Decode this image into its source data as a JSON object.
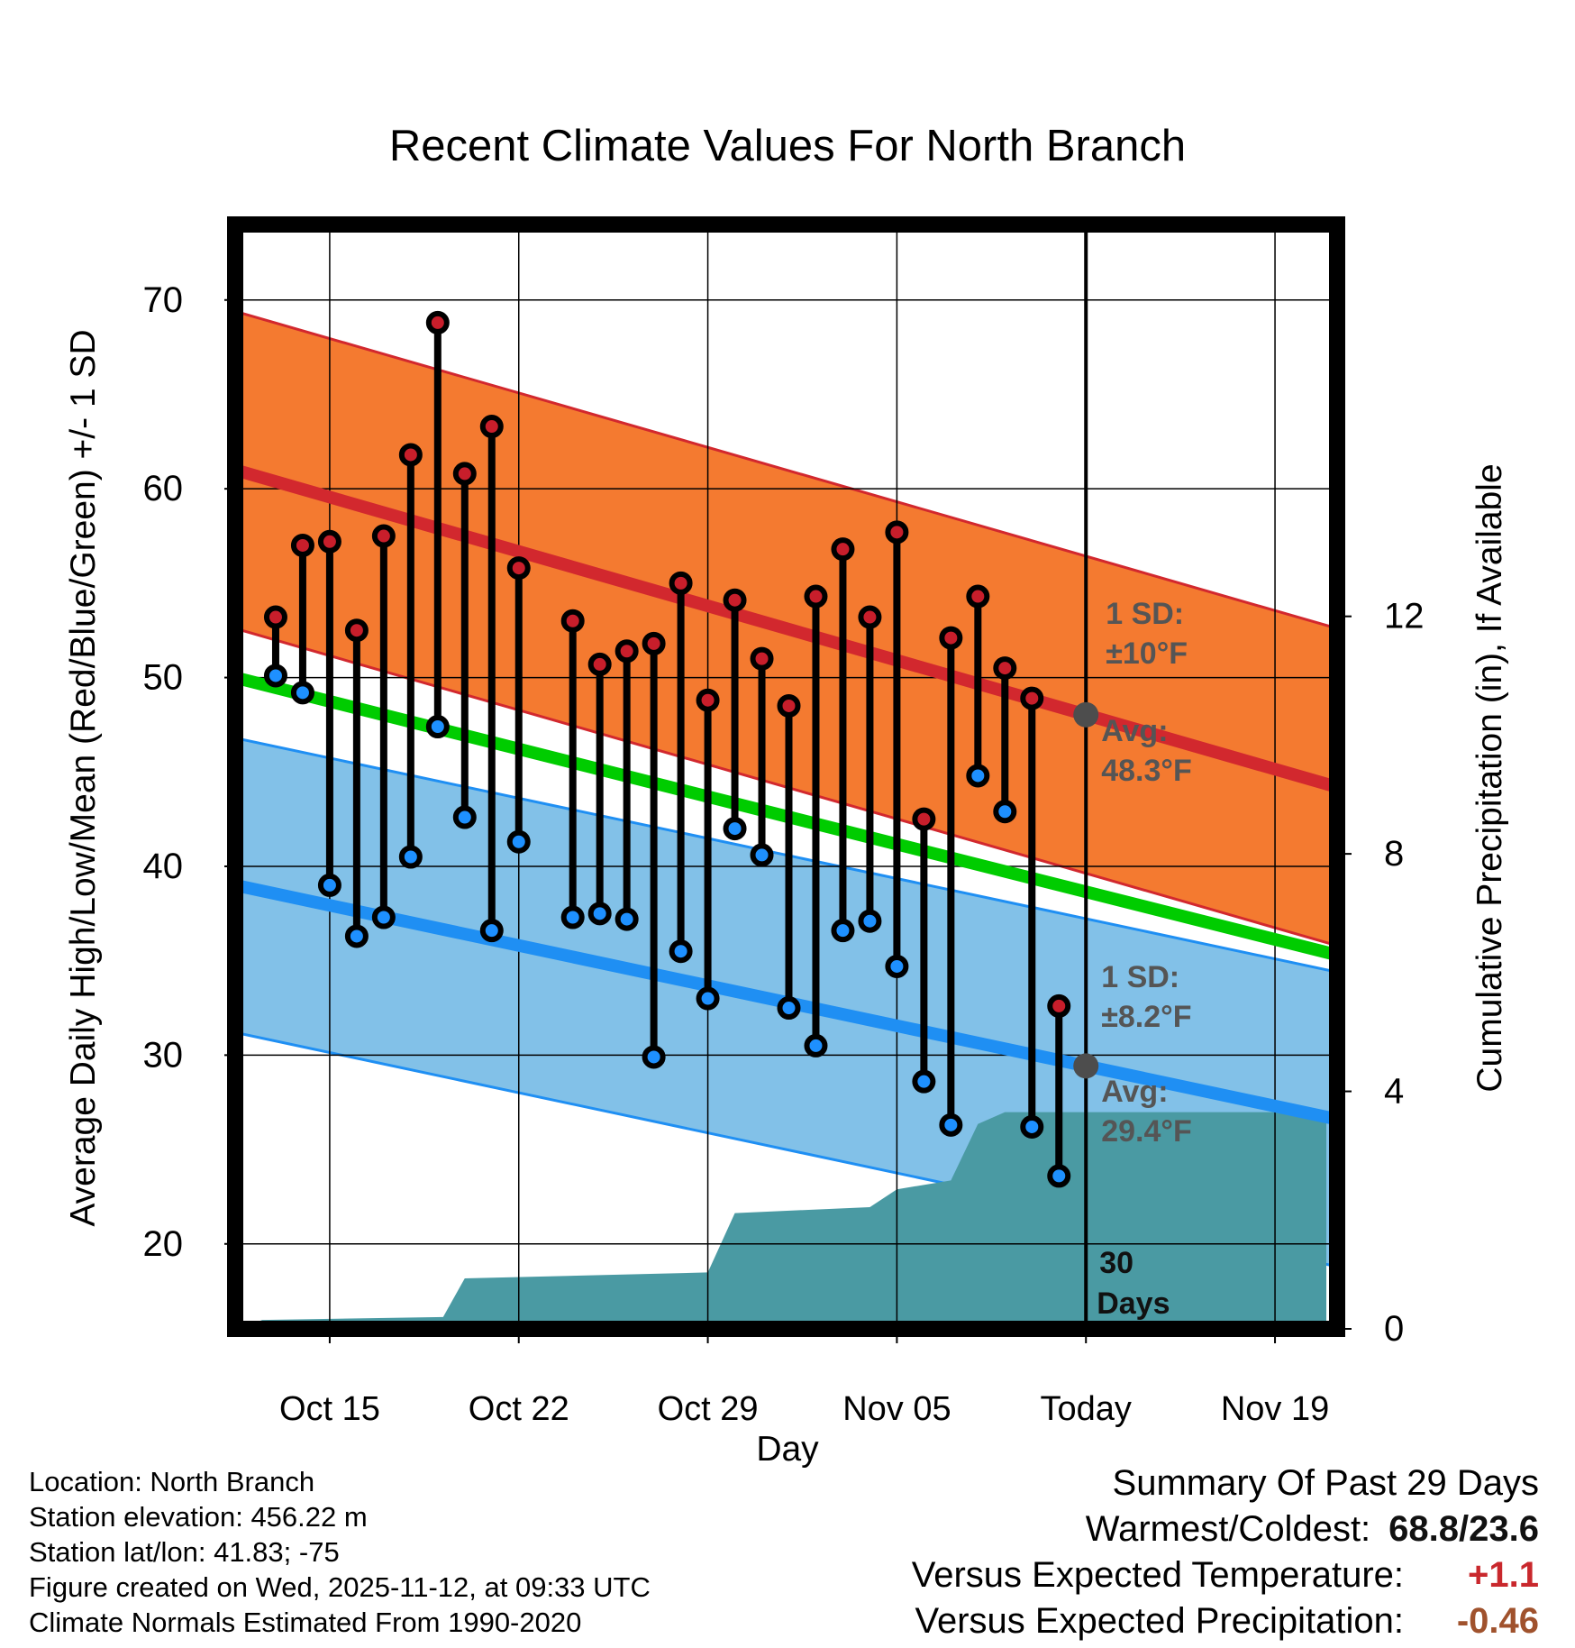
{
  "chart_data": {
    "type": "climate-range",
    "title": "Recent Climate Values For North Branch",
    "xlabel": "Day",
    "ylabel": "Average Daily High/Low/Mean (Red/Blue/Green) +/- 1 SD",
    "y2label": "Cumulative Precipitation (in), If Available",
    "ylim": [
      15.5,
      74
    ],
    "y2lim": [
      0,
      18.6
    ],
    "xlim": [
      -3.5,
      37.3
    ],
    "yticks": [
      20,
      30,
      40,
      50,
      60,
      70
    ],
    "y2ticks": [
      0,
      4,
      8,
      12
    ],
    "xticks": [
      {
        "x": 0,
        "label": "Oct 15"
      },
      {
        "x": 7,
        "label": "Oct 22"
      },
      {
        "x": 14,
        "label": "Oct 29"
      },
      {
        "x": 21,
        "label": "Nov 05"
      },
      {
        "x": 28,
        "label": "Today"
      },
      {
        "x": 35,
        "label": "Nov 19"
      }
    ],
    "today_x": 28,
    "normal_high": {
      "start": 61.0,
      "end": 44.2
    },
    "normal_high_sd": 8.4,
    "normal_low": {
      "start": 39.0,
      "end": 26.6
    },
    "normal_low_sd": 7.8,
    "normal_mean": {
      "start": 50.0,
      "end": 35.3
    },
    "highs": [
      {
        "x": -2,
        "y": 53.2
      },
      {
        "x": -1,
        "y": 57.0
      },
      {
        "x": 0,
        "y": 57.2
      },
      {
        "x": 1,
        "y": 52.5
      },
      {
        "x": 2,
        "y": 57.5
      },
      {
        "x": 3,
        "y": 61.8
      },
      {
        "x": 4,
        "y": 68.8
      },
      {
        "x": 5,
        "y": 60.8
      },
      {
        "x": 6,
        "y": 63.3
      },
      {
        "x": 7,
        "y": 55.8
      },
      {
        "x": 9,
        "y": 53.0
      },
      {
        "x": 10,
        "y": 50.7
      },
      {
        "x": 11,
        "y": 51.4
      },
      {
        "x": 12,
        "y": 51.8
      },
      {
        "x": 13,
        "y": 55.0
      },
      {
        "x": 14,
        "y": 48.8
      },
      {
        "x": 15,
        "y": 54.1
      },
      {
        "x": 16,
        "y": 51.0
      },
      {
        "x": 17,
        "y": 48.5
      },
      {
        "x": 18,
        "y": 54.3
      },
      {
        "x": 19,
        "y": 56.8
      },
      {
        "x": 20,
        "y": 53.2
      },
      {
        "x": 21,
        "y": 57.7
      },
      {
        "x": 22,
        "y": 42.5
      },
      {
        "x": 23,
        "y": 52.1
      },
      {
        "x": 24,
        "y": 54.3
      },
      {
        "x": 25,
        "y": 50.5
      },
      {
        "x": 26,
        "y": 48.9
      },
      {
        "x": 27,
        "y": 32.6
      }
    ],
    "lows": [
      {
        "x": -2,
        "y": 50.1
      },
      {
        "x": -1,
        "y": 49.2
      },
      {
        "x": 0,
        "y": 39.0
      },
      {
        "x": 1,
        "y": 36.3
      },
      {
        "x": 2,
        "y": 37.3
      },
      {
        "x": 3,
        "y": 40.5
      },
      {
        "x": 4,
        "y": 47.4
      },
      {
        "x": 5,
        "y": 42.6
      },
      {
        "x": 6,
        "y": 36.6
      },
      {
        "x": 7,
        "y": 41.3
      },
      {
        "x": 9,
        "y": 37.3
      },
      {
        "x": 10,
        "y": 37.5
      },
      {
        "x": 11,
        "y": 37.2
      },
      {
        "x": 12,
        "y": 29.9
      },
      {
        "x": 13,
        "y": 35.5
      },
      {
        "x": 14,
        "y": 33.0
      },
      {
        "x": 15,
        "y": 42.0
      },
      {
        "x": 16,
        "y": 40.6
      },
      {
        "x": 17,
        "y": 32.5
      },
      {
        "x": 18,
        "y": 30.5
      },
      {
        "x": 19,
        "y": 36.6
      },
      {
        "x": 20,
        "y": 37.1
      },
      {
        "x": 21,
        "y": 34.7
      },
      {
        "x": 22,
        "y": 28.6
      },
      {
        "x": 23,
        "y": 26.3
      },
      {
        "x": 24,
        "y": 44.8
      },
      {
        "x": 25,
        "y": 42.9
      },
      {
        "x": 26,
        "y": 26.2
      },
      {
        "x": 27,
        "y": 23.6
      }
    ],
    "precip": [
      {
        "x": -3.3,
        "y": 0.0
      },
      {
        "x": -2.5,
        "y": 0.15
      },
      {
        "x": 4.2,
        "y": 0.2
      },
      {
        "x": 5.0,
        "y": 0.85
      },
      {
        "x": 14.0,
        "y": 0.95
      },
      {
        "x": 15.0,
        "y": 1.95
      },
      {
        "x": 20.0,
        "y": 2.05
      },
      {
        "x": 21.0,
        "y": 2.35
      },
      {
        "x": 23.0,
        "y": 2.5
      },
      {
        "x": 24.0,
        "y": 3.45
      },
      {
        "x": 25.0,
        "y": 3.65
      },
      {
        "x": 26.0,
        "y": 3.65
      },
      {
        "x": 36.9,
        "y": 3.65
      }
    ],
    "annotations": {
      "high_sd": "1 SD:",
      "high_sd_value": "±10°F",
      "high_avg": "Avg:",
      "high_avg_value": "48.3°F",
      "low_sd": "1 SD:",
      "low_sd_value": "±8.2°F",
      "low_avg": "Avg:",
      "low_avg_value": "29.4°F",
      "days_n": "30",
      "days_label": "Days"
    },
    "colors": {
      "high_band": "#f47a30",
      "high_line": "#d2282e",
      "low_band": "#82c1e8",
      "low_line": "#1f8ff3",
      "mean_line": "#00cc00",
      "precip": "#4a9aa3",
      "high_marker": "#c81e2b",
      "low_marker": "#1e90ff",
      "annot": "#555555"
    }
  },
  "footer": {
    "location": "Location: North Branch",
    "elevation": "Station elevation: 456.22 m",
    "latlon": "Station lat/lon: 41.83; -75",
    "created": "Figure created on Wed, 2025-11-12, at 09:33 UTC",
    "normals": "Climate Normals Estimated From 1990-2020"
  },
  "summary": {
    "title": "Summary Of Past 29 Days",
    "warm_label": "Warmest/Coldest:",
    "warm_value": "68.8/23.6",
    "temp_label": "Versus Expected Temperature:",
    "temp_value": "+1.1",
    "precip_label": "Versus Expected Precipitation:",
    "precip_value": "-0.46"
  }
}
